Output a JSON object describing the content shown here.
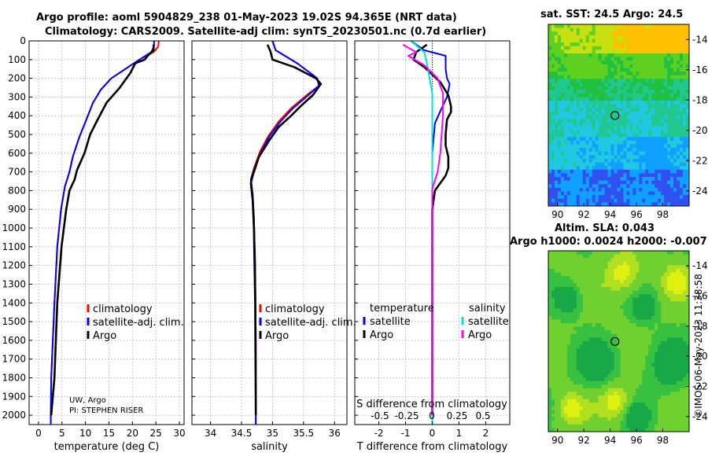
{
  "header": {
    "line1": "Argo profile: aoml 5904829_238 01-May-2023 19.02S 94.365E (NRT data)",
    "line2": "Climatology: CARS2009. Satellite-adj clim: synTS_20230501.nc (0.7d earlier)"
  },
  "colors": {
    "climatology": "#ff0000",
    "satellite": "#0000ff",
    "argo": "#000000",
    "sal_satellite": "#00e0e0",
    "sal_argo": "#ff00ff"
  },
  "depth_axis": {
    "ticks": [
      0,
      100,
      200,
      300,
      400,
      500,
      600,
      700,
      800,
      900,
      1000,
      1100,
      1200,
      1300,
      1400,
      1500,
      1600,
      1700,
      1800,
      1900,
      2000
    ],
    "range": [
      0,
      2050
    ]
  },
  "chart_data": [
    {
      "id": "temperature",
      "type": "line",
      "xlabel": "temperature (deg C)",
      "xlim": [
        -2,
        31
      ],
      "xticks": [
        0,
        5,
        10,
        15,
        20,
        25,
        30
      ],
      "xticklabels": [
        "0",
        "5",
        "10",
        "15",
        "20",
        "25",
        "30"
      ],
      "ylim": [
        0,
        2050
      ],
      "legend": {
        "position": "bottom-right",
        "entries": [
          "climatology",
          "satellite-adj. clim.",
          "Argo"
        ]
      },
      "notes": [
        "UW, Argo",
        "PI: STEPHEN RISER"
      ],
      "series": [
        {
          "name": "climatology",
          "color": "#ff0000",
          "x": [
            25.6,
            25.5,
            24.5,
            21.5,
            18.5,
            15.5,
            13.3,
            11.6,
            10.2,
            8.6,
            7.3,
            6.6,
            5.6,
            4.8,
            4.0,
            3.4,
            2.7,
            2.6
          ],
          "depth": [
            0,
            30,
            60,
            100,
            150,
            200,
            260,
            330,
            420,
            520,
            620,
            700,
            780,
            900,
            1100,
            1400,
            1800,
            2050
          ]
        },
        {
          "name": "satellite-adj. clim.",
          "color": "#0000ff",
          "x": [
            24.6,
            24.6,
            24.0,
            21.5,
            18.5,
            15.5,
            13.3,
            11.6,
            10.2,
            8.6,
            7.3,
            6.6,
            5.6,
            4.8,
            4.0,
            3.4,
            2.7,
            2.6
          ],
          "depth": [
            0,
            30,
            60,
            100,
            150,
            200,
            260,
            330,
            420,
            520,
            620,
            700,
            780,
            900,
            1100,
            1400,
            1800,
            2050
          ]
        },
        {
          "name": "Argo",
          "color": "#000000",
          "x": [
            24.5,
            24.5,
            23.6,
            22.6,
            20.6,
            19.6,
            17.3,
            14.5,
            12.6,
            11.0,
            9.8,
            8.2,
            7.7,
            6.6,
            5.9,
            4.9,
            4.0,
            3.4,
            2.7
          ],
          "depth": [
            20,
            50,
            70,
            100,
            120,
            170,
            250,
            330,
            420,
            500,
            600,
            690,
            740,
            800,
            900,
            1100,
            1400,
            1800,
            2000
          ]
        }
      ]
    },
    {
      "id": "salinity",
      "type": "line",
      "xlabel": "salinity",
      "xlim": [
        33.7,
        36.2
      ],
      "xticks": [
        34,
        34.5,
        35,
        35.5,
        36
      ],
      "xticklabels": [
        "34",
        "34.5",
        "35",
        "35.5",
        "36"
      ],
      "ylim": [
        0,
        2050
      ],
      "legend": {
        "position": "bottom-right",
        "entries": [
          "climatology",
          "satellite-adj. clim.",
          "Argo"
        ]
      },
      "series": [
        {
          "name": "climatology",
          "color": "#ff0000",
          "x": [
            35.0,
            35.05,
            35.4,
            35.72,
            35.75,
            35.55,
            35.3,
            35.1,
            34.93,
            34.8,
            34.7,
            34.65,
            34.68,
            34.7,
            34.72,
            34.73,
            34.73
          ],
          "depth": [
            0,
            50,
            120,
            200,
            240,
            290,
            360,
            430,
            510,
            590,
            680,
            740,
            820,
            950,
            1200,
            1600,
            2050
          ]
        },
        {
          "name": "satellite-adj. clim.",
          "color": "#0000ff",
          "x": [
            35.0,
            35.05,
            35.4,
            35.72,
            35.75,
            35.58,
            35.33,
            35.13,
            34.95,
            34.82,
            34.71,
            34.65,
            34.68,
            34.7,
            34.72,
            34.73,
            34.73
          ],
          "depth": [
            0,
            50,
            120,
            200,
            240,
            290,
            360,
            430,
            510,
            590,
            680,
            740,
            820,
            950,
            1200,
            1600,
            2050
          ]
        },
        {
          "name": "Argo",
          "color": "#000000",
          "x": [
            34.92,
            34.97,
            35.0,
            35.35,
            35.7,
            35.78,
            35.65,
            35.45,
            35.3,
            35.1,
            34.95,
            34.78,
            34.68,
            34.65,
            34.68,
            34.7,
            34.72,
            34.73
          ],
          "depth": [
            20,
            60,
            100,
            140,
            200,
            230,
            290,
            350,
            400,
            460,
            530,
            620,
            720,
            760,
            850,
            1000,
            1400,
            2000
          ]
        }
      ]
    },
    {
      "id": "difference",
      "type": "line",
      "xlabel": "T difference from climatology",
      "xlim": [
        -2.9,
        2.9
      ],
      "xticks": [
        -2,
        -1,
        0,
        1,
        2
      ],
      "xticklabels": [
        "-2",
        "-1",
        "0",
        "1",
        "2"
      ],
      "ylim": [
        0,
        2050
      ],
      "top_axis_label": "S difference from climatology",
      "top_ticks": [
        "-0.5",
        "-0.25",
        "0",
        "0.25",
        "0.5"
      ],
      "legend": {
        "position": "bottom",
        "temperature_title": "temperature",
        "salinity_title": "salinity",
        "entries": [
          "satellite",
          "Argo",
          "satellite",
          "Argo"
        ]
      },
      "series": [
        {
          "name": "T satellite",
          "color": "#0000ff",
          "x": [
            -0.8,
            -0.3,
            0.5,
            0.5,
            0.55,
            0.65,
            0.55,
            0.35,
            0.1,
            0.0,
            0.0,
            0.0
          ],
          "depth": [
            0,
            50,
            80,
            150,
            200,
            230,
            300,
            360,
            440,
            600,
            1000,
            2050
          ]
        },
        {
          "name": "T Argo",
          "color": "#000000",
          "x": [
            -0.2,
            -0.6,
            -0.7,
            -0.3,
            0.3,
            0.6,
            0.7,
            0.7,
            0.55,
            0.5,
            0.5,
            0.6,
            0.6,
            0.55,
            0.5,
            0.3,
            0.1,
            0.0,
            0.0
          ],
          "depth": [
            20,
            60,
            100,
            140,
            220,
            290,
            350,
            380,
            420,
            500,
            560,
            620,
            680,
            700,
            720,
            760,
            800,
            900,
            2000
          ]
        },
        {
          "name": "S satellite",
          "color": "#00e0e0",
          "x": [
            -0.8,
            -0.3,
            -0.2,
            -0.1,
            0.0,
            0.0,
            0.0
          ],
          "depth": [
            0,
            60,
            120,
            200,
            280,
            600,
            2050
          ]
        },
        {
          "name": "S Argo",
          "color": "#ff00ff",
          "x": [
            -1.1,
            -0.6,
            -0.9,
            -0.3,
            0.2,
            0.4,
            0.4,
            0.3,
            0.2,
            0.0,
            0.0,
            0.0,
            0.0
          ],
          "depth": [
            20,
            60,
            80,
            130,
            200,
            280,
            400,
            600,
            700,
            790,
            900,
            1400,
            2000
          ]
        }
      ]
    },
    {
      "id": "sst-map",
      "type": "heatmap",
      "title": "sat. SST: 24.5 Argo: 24.5",
      "xlim": [
        89.3,
        100
      ],
      "ylim": [
        -25,
        -13
      ],
      "xticks": [
        90,
        92,
        94,
        96,
        98
      ],
      "yticks": [
        -14,
        -16,
        -18,
        -20,
        -22,
        -24
      ],
      "marker": {
        "lon": 94.365,
        "lat": -19.02
      }
    },
    {
      "id": "sla-map",
      "type": "heatmap",
      "title": "Altim. SLA: 0.043",
      "subtitle": "Argo h1000: 0.0024 h2000: -0.007",
      "xlim": [
        89.3,
        100
      ],
      "ylim": [
        -25,
        -13
      ],
      "xticks": [
        90,
        92,
        94,
        96,
        98
      ],
      "yticks": [
        -14,
        -16,
        -18,
        -20,
        -22,
        -24
      ],
      "marker": {
        "lon": 94.365,
        "lat": -19.02
      }
    }
  ],
  "stamp": "©IMOS 06-May-2023 11:38:58"
}
